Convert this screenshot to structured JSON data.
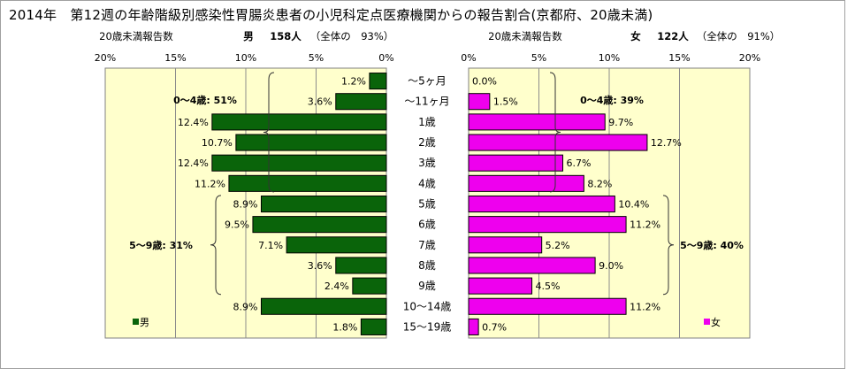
{
  "title": "2014年　第12週の年齢階級別感染性胃腸炎患者の小児科定点医療機関からの報告割合(京都府、20歳未満)",
  "left_header": {
    "caption": "20歳未満報告数",
    "sex": "男",
    "count": "158人",
    "share": "（全体の　93%）"
  },
  "right_header": {
    "caption": "20歳未満報告数",
    "sex": "女",
    "count": "122人",
    "share": "（全体の　91%）"
  },
  "colors": {
    "male": "#0a640a",
    "female": "#ee00ee",
    "plot_bg": "#ffffcc",
    "grid": "#7f7f7f"
  },
  "chart_data": [
    {
      "type": "bar",
      "orientation": "horizontal",
      "direction": "right-to-left",
      "title": "",
      "categories": [
        "～5ヶ月",
        "～11ヶ月",
        "1歳",
        "2歳",
        "3歳",
        "4歳",
        "5歳",
        "6歳",
        "7歳",
        "8歳",
        "9歳",
        "10～14歳",
        "15～19歳"
      ],
      "series": [
        {
          "name": "男",
          "values": [
            1.2,
            3.6,
            12.4,
            10.7,
            12.4,
            11.2,
            8.9,
            9.5,
            7.1,
            3.6,
            2.4,
            8.9,
            1.8
          ],
          "labels": [
            "1.2%",
            "3.6%",
            "12.4%",
            "10.7%",
            "12.4%",
            "11.2%",
            "8.9%",
            "9.5%",
            "7.1%",
            "3.6%",
            "2.4%",
            "8.9%",
            "1.8%"
          ]
        }
      ],
      "xlim": [
        0,
        20
      ],
      "xticks": [
        "20%",
        "15%",
        "10%",
        "5%",
        "0%"
      ],
      "grid": true,
      "legend": "bottom-left",
      "annotations": [
        {
          "text": "0～4歳: 51%",
          "from": 0,
          "to": 5
        },
        {
          "text": "5～9歳: 31%",
          "from": 6,
          "to": 10
        }
      ]
    },
    {
      "type": "bar",
      "orientation": "horizontal",
      "direction": "left-to-right",
      "title": "",
      "categories": [
        "～5ヶ月",
        "～11ヶ月",
        "1歳",
        "2歳",
        "3歳",
        "4歳",
        "5歳",
        "6歳",
        "7歳",
        "8歳",
        "9歳",
        "10～14歳",
        "15～19歳"
      ],
      "series": [
        {
          "name": "女",
          "values": [
            0.0,
            1.5,
            9.7,
            12.7,
            6.7,
            8.2,
            10.4,
            11.2,
            5.2,
            9.0,
            4.5,
            11.2,
            0.7
          ],
          "labels": [
            "0.0%",
            "1.5%",
            "9.7%",
            "12.7%",
            "6.7%",
            "8.2%",
            "10.4%",
            "11.2%",
            "5.2%",
            "9.0%",
            "4.5%",
            "11.2%",
            "0.7%"
          ]
        }
      ],
      "xlim": [
        0,
        20
      ],
      "xticks": [
        "0%",
        "5%",
        "10%",
        "15%",
        "20%"
      ],
      "grid": true,
      "legend": "bottom-left",
      "annotations": [
        {
          "text": "0～4歳: 39%",
          "from": 0,
          "to": 5
        },
        {
          "text": "5～9歳: 40%",
          "from": 6,
          "to": 10
        }
      ]
    }
  ]
}
